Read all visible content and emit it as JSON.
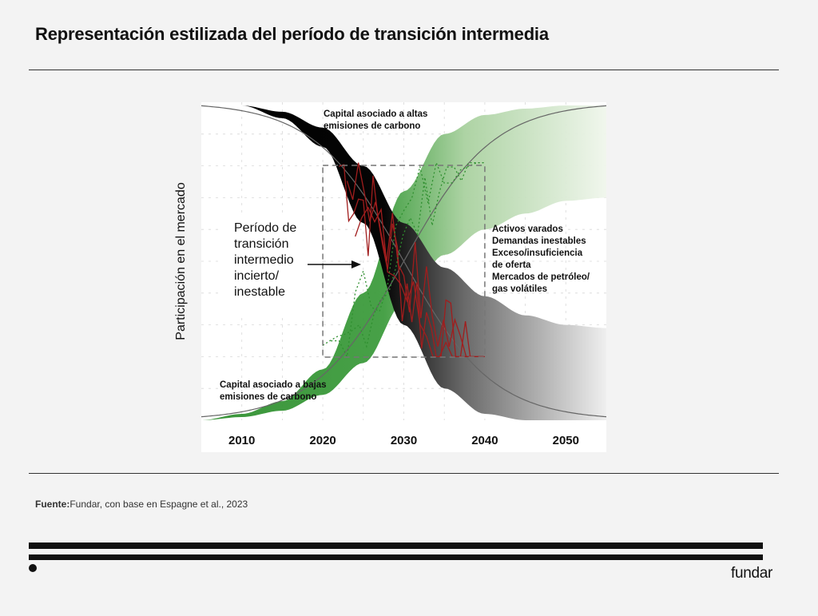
{
  "header": {
    "title": "Representación estilizada del período de transición intermedia"
  },
  "source": {
    "label": "Fuente:",
    "text": "Fundar, con base en Espagne et al., 2023"
  },
  "brand": {
    "name": "fundar"
  },
  "colors": {
    "green": "#3b9a3b",
    "light_green": "#cfe3c6",
    "red": "#9b1b1b",
    "black": "#000000",
    "grid": "#bdbdbd"
  },
  "chart_data": {
    "type": "area",
    "ylabel": "Participación en el mercado",
    "xlabel": "",
    "xlim": [
      2005,
      2055
    ],
    "ylim": [
      0,
      1
    ],
    "x_ticks": [
      2010,
      2020,
      2030,
      2040,
      2050
    ],
    "grid": true,
    "series": [
      {
        "name": "Capital asociado a altas emisiones de carbono",
        "x": [
          2005,
          2010,
          2015,
          2020,
          2025,
          2030,
          2035,
          2040,
          2045,
          2050,
          2055
        ],
        "upper": [
          1.0,
          0.99,
          0.97,
          0.92,
          0.8,
          0.62,
          0.48,
          0.39,
          0.33,
          0.3,
          0.29
        ],
        "lower": [
          1.0,
          0.99,
          0.95,
          0.86,
          0.62,
          0.3,
          0.1,
          0.02,
          0.0,
          0.0,
          0.0
        ]
      },
      {
        "name": "Capital asociado a bajas emisiones de carbono",
        "x": [
          2005,
          2010,
          2015,
          2020,
          2025,
          2030,
          2035,
          2040,
          2045,
          2050,
          2055
        ],
        "upper": [
          0.0,
          0.02,
          0.06,
          0.16,
          0.4,
          0.72,
          0.9,
          0.96,
          0.98,
          0.99,
          0.99
        ],
        "lower": [
          0.0,
          0.01,
          0.03,
          0.08,
          0.18,
          0.37,
          0.52,
          0.6,
          0.65,
          0.69,
          0.7
        ]
      }
    ],
    "annotations": {
      "high_carbon": [
        "Capital asociado a altas",
        "emisiones de carbono"
      ],
      "low_carbon": [
        "Capital asociado a bajas",
        "emisiones de carbono"
      ],
      "transition": [
        "Período de",
        "transición",
        "intermedio",
        "incierto/",
        "inestable"
      ],
      "effects": [
        "Activos varados",
        "Demandas inestables",
        "Exceso/insuficiencia",
        "de oferta",
        "Mercados de petróleo/",
        "gas volátiles"
      ]
    },
    "transition_window": [
      2020,
      2040
    ]
  }
}
